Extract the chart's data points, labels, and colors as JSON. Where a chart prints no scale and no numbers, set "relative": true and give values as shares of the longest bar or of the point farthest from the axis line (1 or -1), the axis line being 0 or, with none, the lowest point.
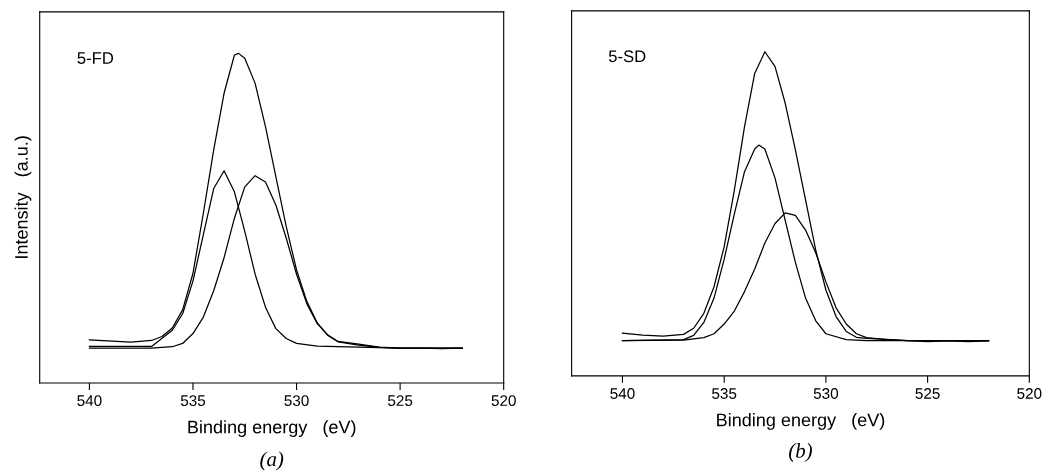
{
  "chart_data": [
    {
      "type": "line",
      "relative": true,
      "xlabel": "Binding energy   (eV)",
      "ylabel": "Intensity   (a.u.)",
      "annotations": [
        "5-FD",
        "(a)"
      ],
      "xlim": [
        542.4,
        520
      ],
      "xticks": [
        540,
        535,
        530,
        525,
        520
      ],
      "grid": false,
      "legend": false,
      "tick_labels": "x",
      "series": [
        {
          "color": "#000000",
          "x": [
            540,
            538,
            537,
            536.5,
            536,
            535.5,
            535,
            534.5,
            534,
            533.5,
            533,
            532.8,
            532.5,
            532,
            531.5,
            531,
            530.5,
            530,
            529.5,
            529,
            528.5,
            528,
            527,
            526,
            525,
            524,
            523,
            522
          ],
          "values": [
            0.131,
            0.124,
            0.129,
            0.141,
            0.167,
            0.222,
            0.333,
            0.515,
            0.707,
            0.879,
            0.995,
            1.0,
            0.985,
            0.909,
            0.778,
            0.626,
            0.475,
            0.343,
            0.247,
            0.182,
            0.146,
            0.126,
            0.118,
            0.109,
            0.106,
            0.106,
            0.104,
            0.106
          ]
        },
        {
          "color": "#000000",
          "x": [
            540,
            537,
            536,
            535.5,
            535,
            534.5,
            534,
            533.5,
            533,
            532.5,
            532,
            531.5,
            531,
            530.5,
            530,
            529,
            528,
            525,
            522
          ],
          "values": [
            0.111,
            0.111,
            0.16,
            0.21,
            0.31,
            0.45,
            0.59,
            0.644,
            0.58,
            0.46,
            0.33,
            0.23,
            0.165,
            0.135,
            0.12,
            0.112,
            0.11,
            0.106,
            0.106
          ]
        },
        {
          "color": "#000000",
          "x": [
            540,
            537,
            536,
            535.5,
            535,
            534.5,
            534,
            533.5,
            533,
            532.5,
            532,
            531.5,
            531,
            530.5,
            530,
            529.5,
            529,
            528.5,
            528,
            527,
            526,
            525,
            522
          ],
          "values": [
            0.106,
            0.106,
            0.11,
            0.12,
            0.15,
            0.2,
            0.28,
            0.38,
            0.5,
            0.595,
            0.629,
            0.61,
            0.54,
            0.44,
            0.33,
            0.24,
            0.18,
            0.145,
            0.125,
            0.115,
            0.108,
            0.106,
            0.106
          ]
        }
      ]
    },
    {
      "type": "line",
      "relative": true,
      "xlabel": "Binding energy   (eV)",
      "annotations": [
        "5-SD",
        "(b)"
      ],
      "xlim": [
        542.5,
        520
      ],
      "xticks": [
        540,
        535,
        530,
        525,
        520
      ],
      "grid": false,
      "legend": false,
      "tick_labels": "x",
      "series": [
        {
          "color": "#000000",
          "x": [
            540,
            539,
            538,
            537,
            536.5,
            536,
            535.5,
            535,
            534.5,
            534,
            533.5,
            533,
            532.5,
            532,
            531.5,
            531,
            530.5,
            530,
            529.5,
            529,
            528.5,
            528,
            527,
            526,
            525,
            524,
            523,
            522
          ],
          "values": [
            0.132,
            0.126,
            0.123,
            0.128,
            0.147,
            0.193,
            0.275,
            0.399,
            0.573,
            0.769,
            0.933,
            1.0,
            0.954,
            0.841,
            0.697,
            0.543,
            0.388,
            0.265,
            0.183,
            0.137,
            0.119,
            0.116,
            0.113,
            0.109,
            0.106,
            0.108,
            0.106,
            0.108
          ]
        },
        {
          "color": "#000000",
          "x": [
            540,
            537,
            536.5,
            536,
            535.5,
            535,
            534.5,
            534,
            533.5,
            533.3,
            533,
            532.5,
            532,
            531.5,
            531,
            530.5,
            530,
            529,
            528,
            522
          ],
          "values": [
            0.109,
            0.112,
            0.125,
            0.165,
            0.24,
            0.36,
            0.5,
            0.63,
            0.7,
            0.712,
            0.7,
            0.61,
            0.48,
            0.35,
            0.24,
            0.17,
            0.13,
            0.112,
            0.109,
            0.109
          ]
        },
        {
          "color": "#000000",
          "x": [
            540,
            537,
            536,
            535.5,
            535,
            534.5,
            534,
            533.5,
            533,
            532.5,
            532,
            531.5,
            531,
            530.5,
            530,
            529.5,
            529,
            528.5,
            528,
            527,
            526,
            522
          ],
          "values": [
            0.109,
            0.11,
            0.118,
            0.13,
            0.16,
            0.2,
            0.26,
            0.33,
            0.41,
            0.47,
            0.503,
            0.495,
            0.45,
            0.38,
            0.29,
            0.21,
            0.16,
            0.13,
            0.118,
            0.112,
            0.109,
            0.109
          ]
        }
      ]
    }
  ]
}
